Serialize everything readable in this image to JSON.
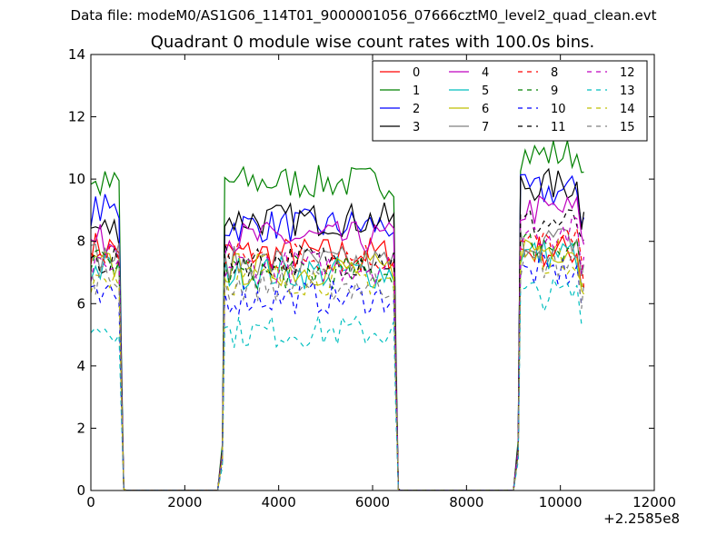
{
  "suptitle": "Data file: modeM0/AS1G06_114T01_9000001056_07666cztM0_level2_quad_clean.evt",
  "x_offset_label": "+2.2585e8",
  "chart_data": {
    "type": "line",
    "title": "Quadrant 0 module wise count rates with 100.0s bins.",
    "xlabel": "",
    "ylabel": "",
    "xlim": [
      0,
      12000
    ],
    "ylim": [
      0,
      14
    ],
    "x_offset": 225850000,
    "xticks": [
      0,
      2000,
      4000,
      6000,
      8000,
      10000,
      12000
    ],
    "xtick_labels": [
      "0",
      "2000",
      "4000",
      "6000",
      "8000",
      "10000",
      "12000"
    ],
    "yticks": [
      0,
      2,
      4,
      6,
      8,
      10,
      12,
      14
    ],
    "ytick_labels": [
      "0",
      "2",
      "4",
      "6",
      "8",
      "10",
      "12",
      "14"
    ],
    "grid": false,
    "legend_position": "top-right",
    "legend_columns": 4,
    "active_segments": [
      {
        "x": [
          0,
          100,
          200,
          300,
          400,
          500,
          600
        ],
        "ramp_down": [
          650,
          700
        ]
      },
      {
        "ramp_up": [
          2700,
          2800
        ],
        "x": [
          2850,
          2950,
          3050,
          3150,
          3250,
          3350,
          3450,
          3550,
          3650,
          3750,
          3850,
          3950,
          4050,
          4150,
          4250,
          4350,
          4450,
          4550,
          4650,
          4750,
          4850,
          4950,
          5050,
          5150,
          5250,
          5350,
          5450,
          5550,
          5650,
          5750,
          5850,
          5950,
          6050,
          6150,
          6250,
          6350,
          6450
        ],
        "ramp_down": [
          6500,
          6550
        ]
      },
      {
        "ramp_up": [
          9000,
          9100
        ],
        "x": [
          9150,
          9250,
          9350,
          9450,
          9550,
          9650,
          9750,
          9850,
          9950,
          10050,
          10150,
          10250,
          10350,
          10450,
          10500
        ]
      }
    ],
    "series": [
      {
        "name": "0",
        "color": "#ff0000",
        "style": "solid",
        "levels": [
          7.8,
          7.6,
          7.7
        ]
      },
      {
        "name": "1",
        "color": "#008000",
        "style": "solid",
        "levels": [
          9.8,
          9.9,
          10.8
        ]
      },
      {
        "name": "2",
        "color": "#0000ff",
        "style": "solid",
        "levels": [
          9.0,
          8.5,
          9.6
        ]
      },
      {
        "name": "3",
        "color": "#000000",
        "style": "solid",
        "levels": [
          8.4,
          8.7,
          9.8
        ]
      },
      {
        "name": "4",
        "color": "#bf00bf",
        "style": "solid",
        "levels": [
          8.0,
          8.1,
          9.0
        ]
      },
      {
        "name": "5",
        "color": "#00bfbf",
        "style": "solid",
        "levels": [
          7.1,
          7.0,
          7.6
        ]
      },
      {
        "name": "6",
        "color": "#bfbf00",
        "style": "solid",
        "levels": [
          7.2,
          7.1,
          7.8
        ]
      },
      {
        "name": "7",
        "color": "#808080",
        "style": "solid",
        "levels": [
          7.5,
          7.3,
          8.0
        ]
      },
      {
        "name": "8",
        "color": "#ff0000",
        "style": "dashed",
        "levels": [
          7.6,
          7.5,
          7.9
        ]
      },
      {
        "name": "9",
        "color": "#008000",
        "style": "dashed",
        "levels": [
          7.3,
          7.0,
          7.9
        ]
      },
      {
        "name": "10",
        "color": "#0000ff",
        "style": "dashed",
        "levels": [
          6.1,
          6.2,
          7.0
        ]
      },
      {
        "name": "11",
        "color": "#000000",
        "style": "dashed",
        "levels": [
          7.4,
          7.4,
          8.6
        ]
      },
      {
        "name": "12",
        "color": "#bf00bf",
        "style": "dashed",
        "levels": [
          7.0,
          7.2,
          8.3
        ]
      },
      {
        "name": "13",
        "color": "#00bfbf",
        "style": "dashed",
        "levels": [
          5.3,
          5.1,
          6.3
        ]
      },
      {
        "name": "14",
        "color": "#bfbf00",
        "style": "dashed",
        "levels": [
          6.9,
          6.8,
          7.5
        ]
      },
      {
        "name": "15",
        "color": "#808080",
        "style": "dashed",
        "levels": [
          6.8,
          6.6,
          7.3
        ]
      }
    ]
  }
}
